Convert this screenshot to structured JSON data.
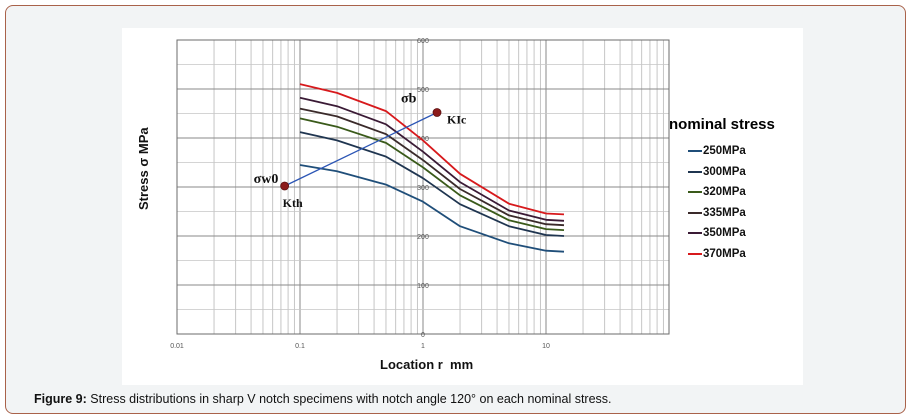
{
  "caption": {
    "label": "Figure 9:",
    "text": " Stress distributions in sharp V notch specimens with notch angle 120° on each nominal stress."
  },
  "chart_data": {
    "type": "line",
    "xlabel": "Location r  mm",
    "ylabel": "Stress σ MPa",
    "xscale": "log",
    "xlim": [
      0.01,
      100
    ],
    "ylim": [
      0,
      600
    ],
    "x_ticks": [
      "0.01",
      "0.1",
      "1",
      "10"
    ],
    "y_ticks": [
      "0",
      "100",
      "200",
      "300",
      "400",
      "500",
      "600"
    ],
    "grid": true,
    "legend_title": "nominal stress",
    "legend_position": "right",
    "series": [
      {
        "name": "250MPa",
        "color": "#1f4e79",
        "x": [
          0.1,
          0.2,
          0.5,
          1,
          2,
          5,
          10,
          14
        ],
        "y": [
          345,
          332,
          305,
          270,
          220,
          185,
          170,
          168
        ]
      },
      {
        "name": "300MPa",
        "color": "#1f3550",
        "x": [
          0.1,
          0.2,
          0.5,
          1,
          2,
          5,
          10,
          14
        ],
        "y": [
          412,
          395,
          362,
          318,
          265,
          220,
          202,
          200
        ]
      },
      {
        "name": "320MPa",
        "color": "#3a5a1a",
        "x": [
          0.1,
          0.2,
          0.5,
          1,
          2,
          5,
          10,
          14
        ],
        "y": [
          440,
          423,
          390,
          340,
          283,
          232,
          214,
          212
        ]
      },
      {
        "name": "335MPa",
        "color": "#3a2a2a",
        "x": [
          0.1,
          0.2,
          0.5,
          1,
          2,
          5,
          10,
          14
        ],
        "y": [
          460,
          444,
          408,
          355,
          296,
          242,
          224,
          222
        ]
      },
      {
        "name": "350MPa",
        "color": "#3a1a35",
        "x": [
          0.1,
          0.2,
          0.5,
          1,
          2,
          5,
          10,
          14
        ],
        "y": [
          482,
          465,
          428,
          372,
          310,
          252,
          233,
          231
        ]
      },
      {
        "name": "370MPa",
        "color": "#d7191c",
        "x": [
          0.1,
          0.2,
          0.5,
          1,
          2,
          5,
          10,
          14
        ],
        "y": [
          510,
          492,
          455,
          395,
          327,
          266,
          246,
          244
        ]
      }
    ],
    "annotations": [
      {
        "point_label": "σw0",
        "secondary_label": "Kth",
        "x": 0.075,
        "y": 302
      },
      {
        "point_label": "σb",
        "secondary_label": "KIc",
        "x": 1.3,
        "y": 452
      }
    ]
  }
}
